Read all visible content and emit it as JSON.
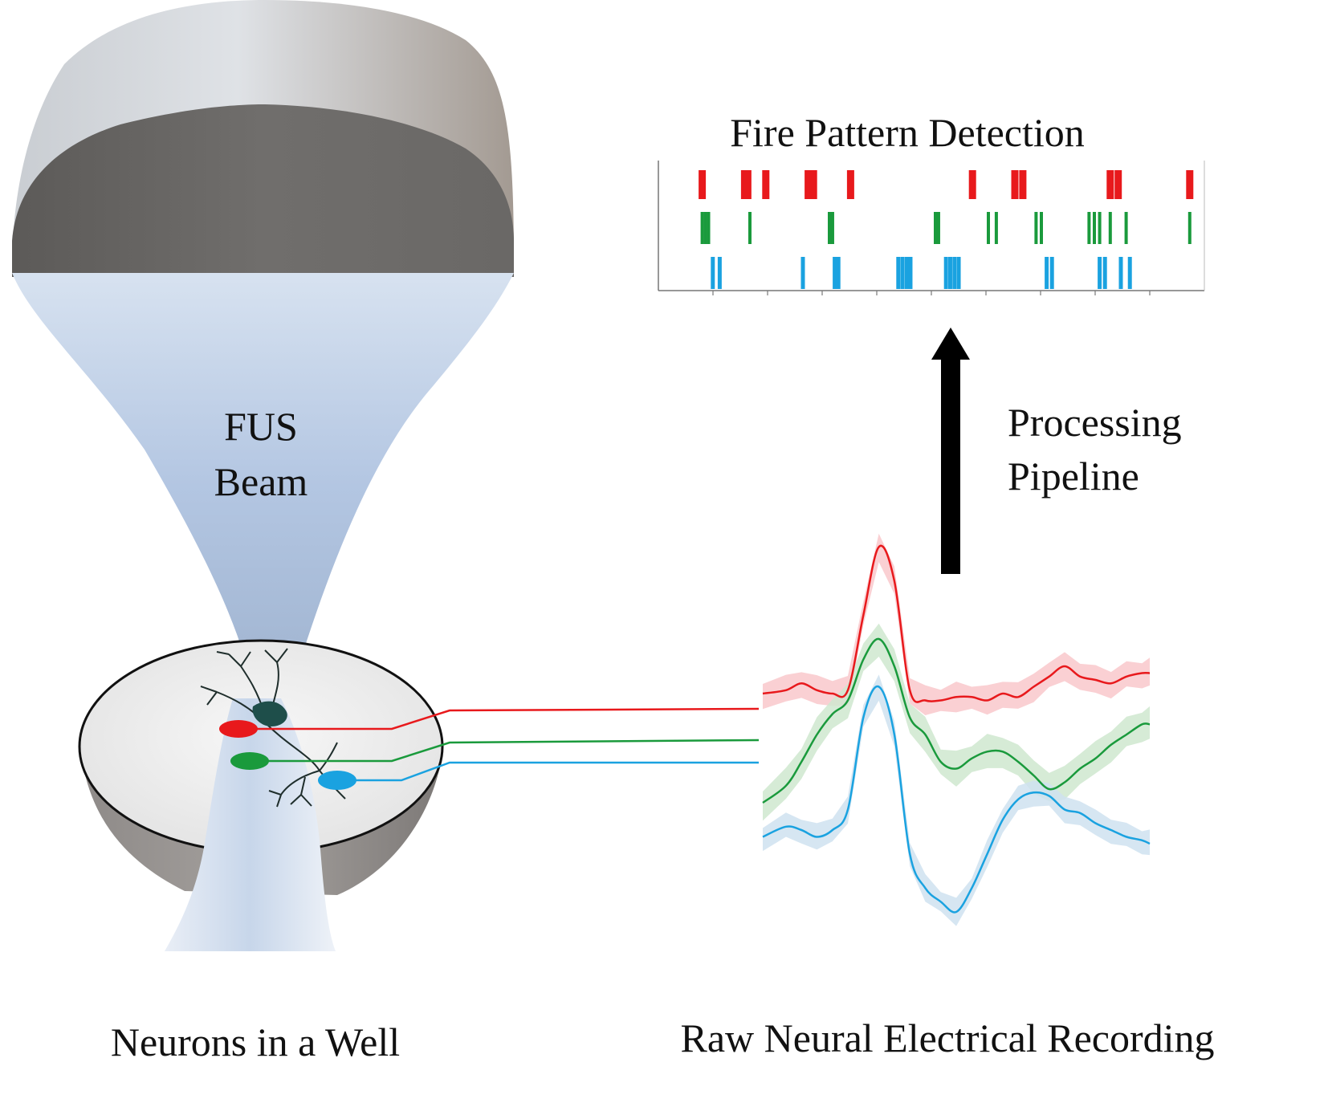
{
  "labels": {
    "beam_line1": "FUS",
    "beam_line2": "Beam",
    "well": "Neurons in a Well",
    "recording": "Raw Neural Electrical Recording",
    "pipeline_line1": "Processing",
    "pipeline_line2": "Pipeline",
    "detection": "Fire Pattern Detection"
  },
  "colors": {
    "red": "#e8191c",
    "green": "#1a9a3c",
    "blue": "#1aa2e0",
    "red_band": "#f9c8cb",
    "green_band": "#cfe8cf",
    "blue_band": "#cfe2f0"
  },
  "raster": {
    "xlim": [
      0,
      100
    ],
    "rows": [
      {
        "name": "red",
        "spikes": [
          6,
          14,
          14.6,
          18,
          26,
          26.5,
          27,
          34,
          57,
          65,
          66.5,
          83,
          84.5,
          98
        ]
      },
      {
        "name": "green",
        "spikes": [
          6,
          6.6,
          7.2,
          15,
          30,
          30.6,
          50,
          50.6,
          60,
          61.5,
          69,
          70,
          79,
          80,
          81,
          83,
          86,
          98
        ]
      },
      {
        "name": "blue",
        "spikes": [
          8,
          9.3,
          25,
          31,
          31.7,
          43,
          43.8,
          44.6,
          45.3,
          52,
          52.8,
          53.6,
          54.4,
          71,
          72,
          81,
          82,
          85,
          86.7
        ]
      }
    ]
  },
  "traces": {
    "xlim": [
      0,
      100
    ],
    "red": {
      "x": [
        0,
        6,
        10,
        14,
        18,
        22,
        26,
        30,
        34,
        38,
        42,
        46,
        50,
        54,
        58,
        62,
        66,
        70,
        74,
        78,
        82,
        86,
        90,
        94,
        98,
        100
      ],
      "y": [
        12,
        13,
        15,
        13,
        12,
        13,
        35,
        55,
        45,
        13,
        10,
        10,
        11,
        11,
        10,
        12,
        11,
        14,
        17,
        20,
        17,
        16,
        15,
        17,
        18,
        18
      ]
    },
    "green": {
      "x": [
        0,
        6,
        10,
        14,
        18,
        22,
        26,
        30,
        34,
        38,
        42,
        46,
        50,
        54,
        58,
        62,
        66,
        70,
        74,
        78,
        82,
        86,
        90,
        94,
        98,
        100
      ],
      "y": [
        -20,
        -15,
        -8,
        0,
        6,
        10,
        22,
        28,
        20,
        5,
        0,
        -8,
        -10,
        -7,
        -5,
        -5,
        -8,
        -12,
        -16,
        -14,
        -10,
        -7,
        -3,
        0,
        3,
        3
      ]
    },
    "blue": {
      "x": [
        0,
        6,
        10,
        14,
        18,
        22,
        26,
        30,
        34,
        38,
        42,
        46,
        50,
        54,
        58,
        62,
        66,
        70,
        74,
        78,
        82,
        86,
        90,
        94,
        98,
        100
      ],
      "y": [
        -30,
        -27,
        -28,
        -30,
        -28,
        -22,
        5,
        14,
        0,
        -35,
        -45,
        -49,
        -52,
        -45,
        -35,
        -25,
        -19,
        -17,
        -18,
        -22,
        -23,
        -26,
        -28,
        -30,
        -31,
        -32
      ]
    }
  }
}
